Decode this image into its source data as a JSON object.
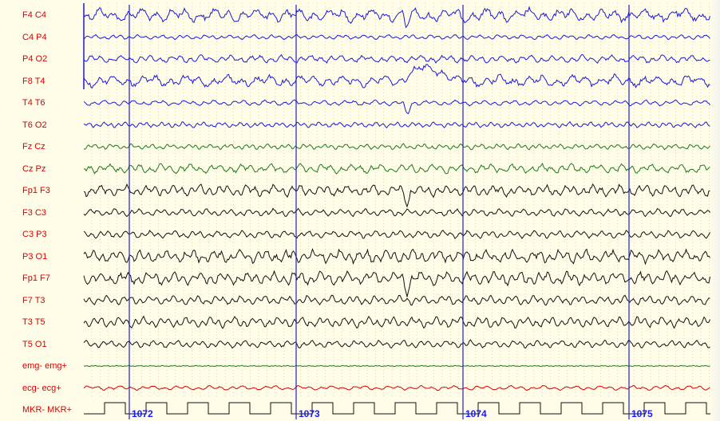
{
  "channels": [
    {
      "label": "F4 C4",
      "color": "#1a1ad8",
      "amp": 7,
      "freq": 0.35,
      "noise": 0.5
    },
    {
      "label": "C4 P4",
      "color": "#1a1ad8",
      "amp": 2.5,
      "freq": 0.6,
      "noise": 0.3
    },
    {
      "label": "P4 O2",
      "color": "#1a1ad8",
      "amp": 4,
      "freq": 0.5,
      "noise": 0.4
    },
    {
      "label": "F8 T4",
      "color": "#1a1ad8",
      "amp": 6,
      "freq": 0.35,
      "noise": 0.5
    },
    {
      "label": "T4 T6",
      "color": "#1a1ad8",
      "amp": 3,
      "freq": 0.5,
      "noise": 0.3
    },
    {
      "label": "T6 O2",
      "color": "#1a1ad8",
      "amp": 3,
      "freq": 0.7,
      "noise": 0.3
    },
    {
      "label": "Fz Cz",
      "color": "#1a7a1a",
      "amp": 3,
      "freq": 0.7,
      "noise": 0.3
    },
    {
      "label": "Cz Pz",
      "color": "#1a7a1a",
      "amp": 5,
      "freq": 0.5,
      "noise": 0.4
    },
    {
      "label": "Fp1 F3",
      "color": "#111111",
      "amp": 6,
      "freq": 0.55,
      "noise": 0.4
    },
    {
      "label": "F3 C3",
      "color": "#111111",
      "amp": 4,
      "freq": 0.6,
      "noise": 0.3
    },
    {
      "label": "C3 P3",
      "color": "#111111",
      "amp": 4,
      "freq": 0.6,
      "noise": 0.3
    },
    {
      "label": "P3 O1",
      "color": "#111111",
      "amp": 7,
      "freq": 0.55,
      "noise": 0.4
    },
    {
      "label": "Fp1 F7",
      "color": "#111111",
      "amp": 7,
      "freq": 0.55,
      "noise": 0.4
    },
    {
      "label": "F7 T3",
      "color": "#111111",
      "amp": 5,
      "freq": 0.6,
      "noise": 0.3
    },
    {
      "label": "T3 T5",
      "color": "#111111",
      "amp": 6,
      "freq": 0.6,
      "noise": 0.3
    },
    {
      "label": "T5 O1",
      "color": "#111111",
      "amp": 4,
      "freq": 0.6,
      "noise": 0.3
    },
    {
      "label": "emg- emg+",
      "color": "#1a7a1a",
      "amp": 0.6,
      "freq": 1.2,
      "noise": 0.2
    },
    {
      "label": "ecg- ecg+",
      "color": "#d80000",
      "amp": 2.5,
      "freq": 0.45,
      "noise": 0.3
    },
    {
      "label": "MKR- MKR+",
      "color": "#111111",
      "amp": 0,
      "freq": 0,
      "noise": 0,
      "marker": true
    }
  ],
  "seconds": [
    "1072",
    "1073",
    "1074",
    "1075"
  ],
  "colors": {
    "background": "#fffce8",
    "label_text": "#d80000",
    "second_line": "#2020d0",
    "grid_dots": "#c8c0a0"
  }
}
